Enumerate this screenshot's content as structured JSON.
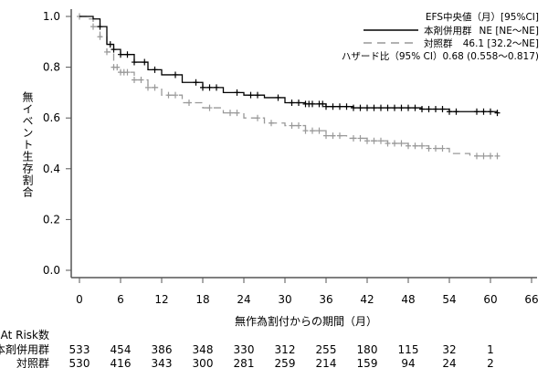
{
  "chart_data": {
    "type": "line",
    "subtype": "kaplan-meier",
    "xlabel": "無作為割付からの期間（月）",
    "ylabel": "無イベント生存割合",
    "xlim": [
      0,
      66
    ],
    "ylim": [
      0,
      1
    ],
    "xticks": [
      "0",
      "6",
      "12",
      "18",
      "24",
      "30",
      "36",
      "42",
      "48",
      "54",
      "60",
      "66"
    ],
    "yticks": [
      "0.0",
      "0.2",
      "0.4",
      "0.6",
      "0.8",
      "1.0"
    ],
    "legend": {
      "header": "EFS中央値（月）[95%CI]",
      "hazard": "ハザード比（95% CI）0.68 (0.558～0.817)",
      "placement": "top-right"
    },
    "series": [
      {
        "name": "本剤併用群",
        "stat": "NE [NE～NE]",
        "color": "#000000",
        "dash": false,
        "x": [
          0,
          2,
          3,
          4,
          5,
          6,
          8,
          10,
          12,
          15,
          18,
          21,
          24,
          27,
          30,
          33,
          36,
          40,
          45,
          50,
          54,
          61
        ],
        "y": [
          1.0,
          0.99,
          0.96,
          0.89,
          0.87,
          0.85,
          0.82,
          0.79,
          0.77,
          0.74,
          0.72,
          0.7,
          0.69,
          0.68,
          0.66,
          0.655,
          0.645,
          0.64,
          0.64,
          0.635,
          0.625,
          0.62
        ],
        "censor": [
          3,
          4.5,
          5,
          6,
          7,
          8,
          9.5,
          11,
          14,
          17,
          18,
          19,
          20,
          23,
          25,
          26,
          29,
          31,
          32,
          33,
          33.5,
          34,
          35,
          35.5,
          36,
          37,
          38,
          39,
          40,
          41,
          42,
          43,
          44,
          45,
          46,
          47,
          48,
          49,
          50,
          51,
          52,
          53,
          54,
          55,
          58,
          59,
          60,
          61
        ]
      },
      {
        "name": "対照群",
        "stat": "46.1 [32.2～NE]",
        "color": "#999999",
        "dash": true,
        "x": [
          0,
          1,
          2,
          3,
          4,
          5,
          6,
          8,
          10,
          12,
          15,
          18,
          21,
          24,
          27,
          30,
          33,
          36,
          39,
          42,
          45,
          48,
          51,
          54,
          57,
          61
        ],
        "y": [
          1.0,
          0.99,
          0.96,
          0.92,
          0.86,
          0.8,
          0.78,
          0.75,
          0.72,
          0.69,
          0.66,
          0.64,
          0.62,
          0.6,
          0.58,
          0.57,
          0.55,
          0.53,
          0.52,
          0.51,
          0.5,
          0.49,
          0.48,
          0.46,
          0.45,
          0.45
        ],
        "censor": [
          0,
          2,
          3,
          4,
          5,
          5.5,
          6,
          6.5,
          7,
          8,
          9,
          10,
          11,
          13,
          14,
          16,
          19,
          22,
          23,
          26,
          28,
          31,
          32,
          33,
          34,
          35,
          36,
          37,
          38,
          40,
          41,
          42,
          43,
          44,
          45,
          46,
          47,
          48,
          49,
          50,
          51,
          52,
          53,
          58,
          59,
          60,
          61
        ]
      }
    ],
    "at_risk": {
      "title": "At Risk数",
      "times": [
        0,
        6,
        12,
        18,
        24,
        30,
        36,
        42,
        48,
        54,
        60
      ],
      "rows": [
        {
          "label": "本剤併用群",
          "values": [
            "533",
            "454",
            "386",
            "348",
            "330",
            "312",
            "255",
            "180",
            "115",
            "32",
            "1"
          ]
        },
        {
          "label": "対照群",
          "values": [
            "530",
            "416",
            "343",
            "300",
            "281",
            "259",
            "214",
            "159",
            "94",
            "24",
            "2"
          ]
        }
      ]
    }
  }
}
